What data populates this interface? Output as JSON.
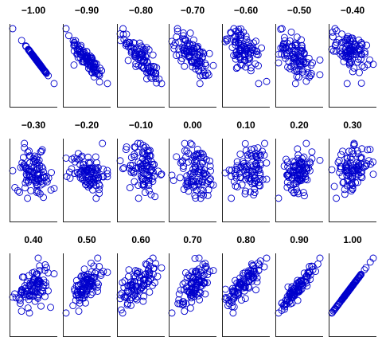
{
  "chart_data": {
    "type": "scatter",
    "panel_titles": [
      "−1.00",
      "−0.90",
      "−0.80",
      "−0.70",
      "−0.60",
      "−0.50",
      "−0.40",
      "−0.30",
      "−0.20",
      "−0.10",
      "0.00",
      "0.10",
      "0.20",
      "0.30",
      "0.40",
      "0.50",
      "0.60",
      "0.70",
      "0.80",
      "0.90",
      "1.00"
    ],
    "correlations": [
      -1.0,
      -0.9,
      -0.8,
      -0.7,
      -0.6,
      -0.5,
      -0.4,
      -0.3,
      -0.2,
      -0.1,
      0.0,
      0.1,
      0.2,
      0.3,
      0.4,
      0.5,
      0.6,
      0.7,
      0.8,
      0.9,
      1.0
    ],
    "points_per_panel": 100,
    "marker": "open-circle",
    "marker_color": "#0000cc",
    "axis_color": "#222222",
    "grid": false,
    "tick_labels": false
  }
}
